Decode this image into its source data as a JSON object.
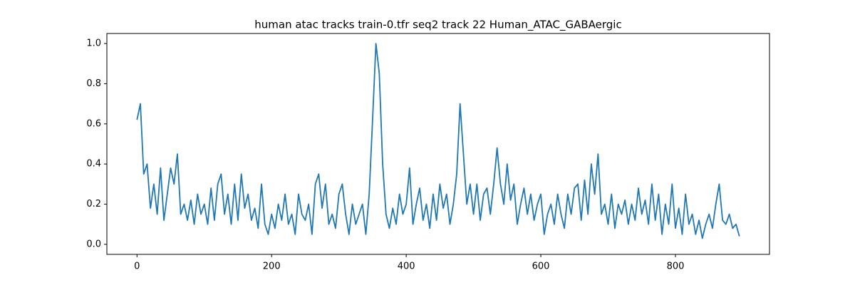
{
  "chart_data": {
    "type": "line",
    "title": "human atac tracks train-0.tfr seq2 track 22 Human_ATAC_GABAergic",
    "color": "#1f77b4",
    "x": [
      0,
      5,
      10,
      15,
      20,
      25,
      30,
      35,
      40,
      45,
      50,
      55,
      60,
      65,
      70,
      75,
      80,
      85,
      90,
      95,
      100,
      105,
      110,
      115,
      120,
      125,
      130,
      135,
      140,
      145,
      150,
      155,
      160,
      165,
      170,
      175,
      180,
      185,
      190,
      195,
      200,
      205,
      210,
      215,
      220,
      225,
      230,
      235,
      240,
      245,
      250,
      255,
      260,
      265,
      270,
      275,
      280,
      285,
      290,
      295,
      300,
      305,
      310,
      315,
      320,
      325,
      330,
      335,
      340,
      345,
      350,
      355,
      360,
      365,
      370,
      375,
      380,
      385,
      390,
      395,
      400,
      405,
      410,
      415,
      420,
      425,
      430,
      435,
      440,
      445,
      450,
      455,
      460,
      465,
      470,
      475,
      480,
      485,
      490,
      495,
      500,
      505,
      510,
      515,
      520,
      525,
      530,
      535,
      540,
      545,
      550,
      555,
      560,
      565,
      570,
      575,
      580,
      585,
      590,
      595,
      600,
      605,
      610,
      615,
      620,
      625,
      630,
      635,
      640,
      645,
      650,
      655,
      660,
      665,
      670,
      675,
      680,
      685,
      690,
      695,
      700,
      705,
      710,
      715,
      720,
      725,
      730,
      735,
      740,
      745,
      750,
      755,
      760,
      765,
      770,
      775,
      780,
      785,
      790,
      795,
      800,
      805,
      810,
      815,
      820,
      825,
      830,
      835,
      840,
      845,
      850,
      855,
      860,
      865,
      870,
      875,
      880,
      885,
      890,
      895
    ],
    "values": [
      0.62,
      0.7,
      0.35,
      0.4,
      0.18,
      0.3,
      0.15,
      0.38,
      0.12,
      0.25,
      0.38,
      0.3,
      0.45,
      0.15,
      0.2,
      0.12,
      0.22,
      0.1,
      0.25,
      0.15,
      0.2,
      0.1,
      0.28,
      0.12,
      0.3,
      0.35,
      0.15,
      0.25,
      0.1,
      0.3,
      0.12,
      0.35,
      0.18,
      0.25,
      0.12,
      0.18,
      0.08,
      0.3,
      0.1,
      0.05,
      0.15,
      0.08,
      0.2,
      0.12,
      0.25,
      0.1,
      0.15,
      0.05,
      0.25,
      0.15,
      0.12,
      0.2,
      0.05,
      0.3,
      0.35,
      0.18,
      0.3,
      0.1,
      0.15,
      0.08,
      0.25,
      0.3,
      0.15,
      0.05,
      0.2,
      0.1,
      0.15,
      0.2,
      0.05,
      0.25,
      0.62,
      1.0,
      0.85,
      0.4,
      0.15,
      0.08,
      0.18,
      0.1,
      0.25,
      0.15,
      0.2,
      0.38,
      0.1,
      0.2,
      0.28,
      0.12,
      0.2,
      0.08,
      0.25,
      0.12,
      0.3,
      0.18,
      0.25,
      0.1,
      0.2,
      0.35,
      0.7,
      0.45,
      0.2,
      0.3,
      0.15,
      0.3,
      0.12,
      0.25,
      0.28,
      0.15,
      0.3,
      0.48,
      0.3,
      0.2,
      0.4,
      0.22,
      0.3,
      0.1,
      0.2,
      0.28,
      0.15,
      0.25,
      0.12,
      0.2,
      0.25,
      0.05,
      0.15,
      0.2,
      0.1,
      0.25,
      0.15,
      0.08,
      0.25,
      0.15,
      0.28,
      0.3,
      0.12,
      0.32,
      0.15,
      0.4,
      0.25,
      0.45,
      0.15,
      0.2,
      0.1,
      0.25,
      0.08,
      0.2,
      0.15,
      0.22,
      0.1,
      0.2,
      0.12,
      0.28,
      0.15,
      0.22,
      0.1,
      0.3,
      0.12,
      0.25,
      0.05,
      0.2,
      0.1,
      0.3,
      0.08,
      0.18,
      0.05,
      0.25,
      0.1,
      0.15,
      0.05,
      0.12,
      0.03,
      0.1,
      0.15,
      0.08,
      0.2,
      0.3,
      0.12,
      0.1,
      0.15,
      0.08,
      0.1,
      0.04
    ],
    "xlim": [
      -44.75,
      939.75
    ],
    "xticks": [
      0,
      200,
      400,
      600,
      800
    ],
    "ylim": [
      -0.05,
      1.05
    ],
    "yticks": [
      {
        "value": 0,
        "label": "0.0"
      },
      0.2,
      0.4,
      0.6,
      0.8,
      {
        "value": 1,
        "label": "1.0"
      }
    ],
    "grid": false
  }
}
